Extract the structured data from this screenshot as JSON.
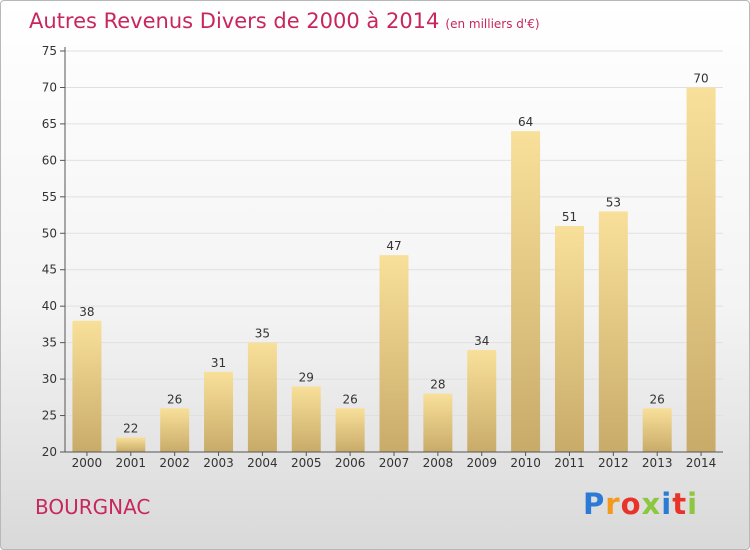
{
  "title": "Autres Revenus Divers de 2000 à 2014",
  "subtitle": "(en milliers d'€)",
  "place": "BOURGNAC",
  "brand": "Proxiti",
  "colors": {
    "title": "#c8275c",
    "bar_light": "#f8e09a",
    "bar_dark": "#c9ab69",
    "axis": "#555555",
    "grid": "#e0e0e0"
  },
  "chart_data": {
    "type": "bar",
    "title": "Autres Revenus Divers de 2000 à 2014",
    "subtitle": "(en milliers d'€)",
    "categories": [
      "2000",
      "2001",
      "2002",
      "2003",
      "2004",
      "2005",
      "2006",
      "2007",
      "2008",
      "2009",
      "2010",
      "2011",
      "2012",
      "2013",
      "2014"
    ],
    "values": [
      38,
      22,
      26,
      31,
      35,
      29,
      26,
      47,
      28,
      34,
      64,
      51,
      53,
      26,
      70
    ],
    "ylim": [
      20,
      75
    ],
    "yticks": [
      20,
      25,
      30,
      35,
      40,
      45,
      50,
      55,
      60,
      65,
      70,
      75
    ],
    "grid": true,
    "data_labels": true
  }
}
